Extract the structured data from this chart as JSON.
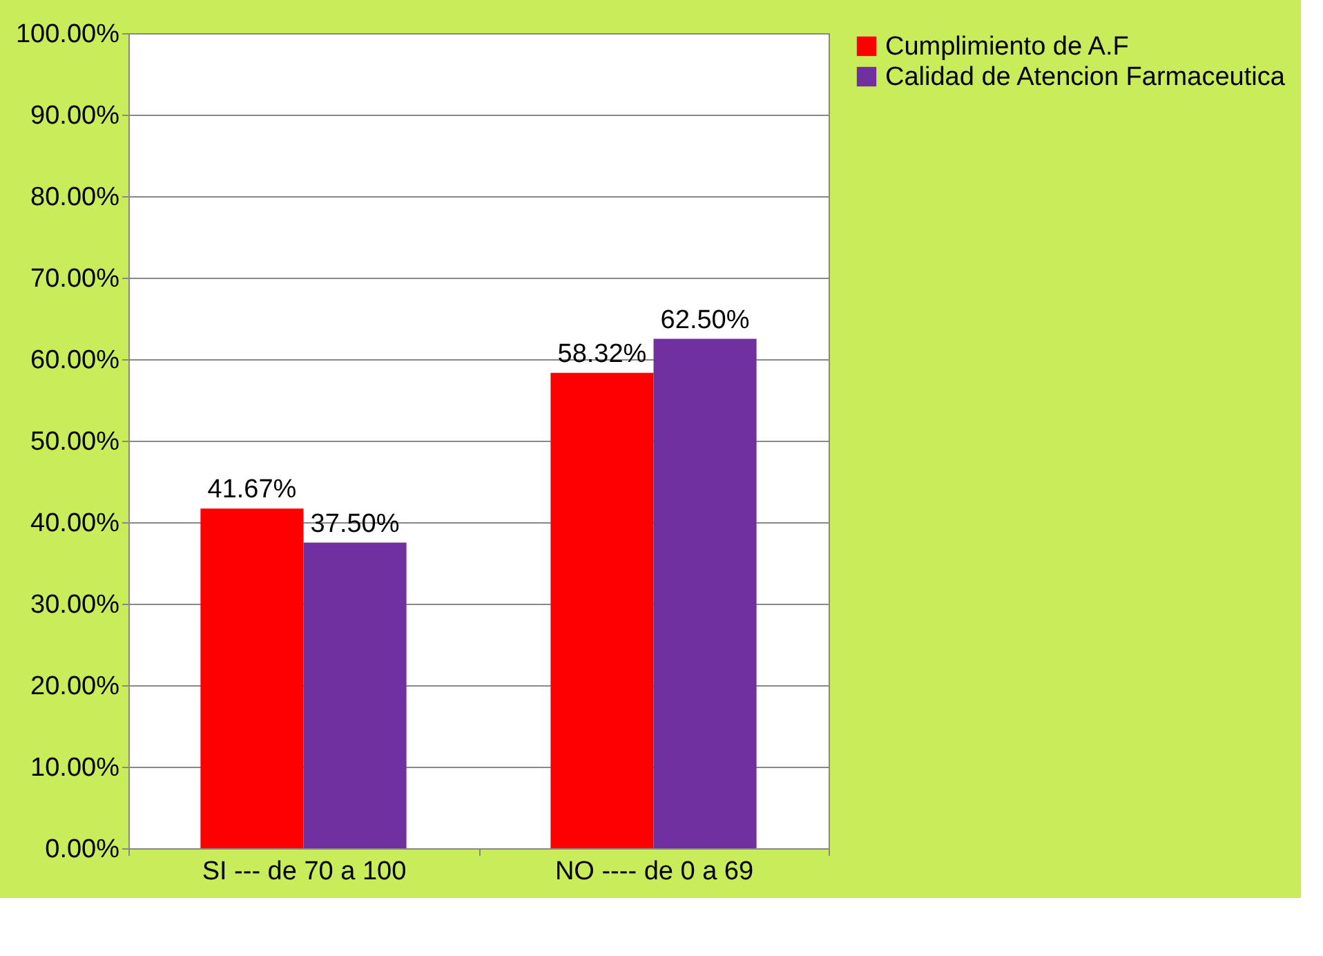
{
  "chart_data": {
    "type": "bar",
    "categories": [
      "SI --- de 70 a 100",
      "NO ---- de 0 a 69"
    ],
    "series": [
      {
        "name": "Cumplimiento de A.F",
        "color": "#ff0000",
        "values": [
          41.67,
          58.32
        ],
        "value_labels": [
          "41.67%",
          "58.32%"
        ]
      },
      {
        "name": "Calidad de Atencion Farmaceutica",
        "color": "#7030a0",
        "values": [
          37.5,
          62.5
        ],
        "value_labels": [
          "37.50%",
          "62.50%"
        ]
      }
    ],
    "ylim": [
      0,
      100
    ],
    "yticks": [
      {
        "value": 0,
        "label": "0.00%"
      },
      {
        "value": 10,
        "label": "10.00%"
      },
      {
        "value": 20,
        "label": "20.00%"
      },
      {
        "value": 30,
        "label": "30.00%"
      },
      {
        "value": 40,
        "label": "40.00%"
      },
      {
        "value": 50,
        "label": "50.00%"
      },
      {
        "value": 60,
        "label": "60.00%"
      },
      {
        "value": 70,
        "label": "70.00%"
      },
      {
        "value": 80,
        "label": "80.00%"
      },
      {
        "value": 90,
        "label": "90.00%"
      },
      {
        "value": 100,
        "label": "100.00%"
      }
    ],
    "grid": "y",
    "legend": "right"
  }
}
